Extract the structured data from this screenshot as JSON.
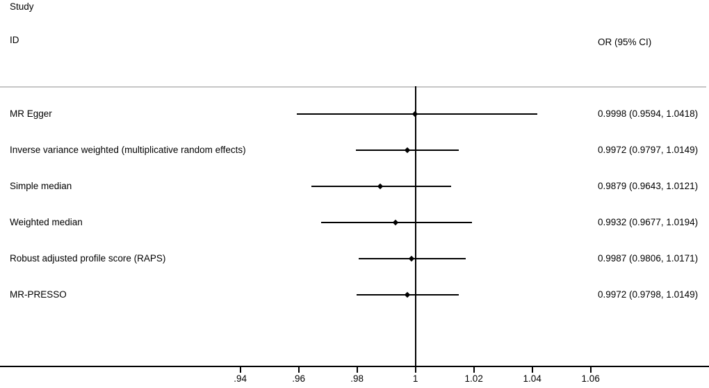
{
  "header": {
    "study_label": "Study",
    "id_label": "ID",
    "or_column_label": "OR (95% CI)"
  },
  "colors": {
    "text": "#000000",
    "line": "#000000",
    "separator": "#c6c6c6",
    "background": "#ffffff"
  },
  "chart_data": {
    "type": "forest",
    "title": "",
    "xlabel": "",
    "ylabel": "",
    "legend": "none",
    "grid": false,
    "reference_line_x": 1,
    "axis_ticks": [
      {
        "value": 0.94,
        "label": ".94"
      },
      {
        "value": 0.96,
        "label": ".96"
      },
      {
        "value": 0.98,
        "label": ".98"
      },
      {
        "value": 1.0,
        "label": "1"
      },
      {
        "value": 1.02,
        "label": "1.02"
      },
      {
        "value": 1.04,
        "label": "1.04"
      },
      {
        "value": 1.06,
        "label": "1.06"
      }
    ],
    "rows": [
      {
        "label": "MR Egger",
        "or": 0.9998,
        "ci_low": 0.9594,
        "ci_high": 1.0418,
        "display": "0.9998 (0.9594, 1.0418)"
      },
      {
        "label": "Inverse variance weighted (multiplicative random effects)",
        "or": 0.9972,
        "ci_low": 0.9797,
        "ci_high": 1.0149,
        "display": "0.9972 (0.9797, 1.0149)"
      },
      {
        "label": "Simple median",
        "or": 0.9879,
        "ci_low": 0.9643,
        "ci_high": 1.0121,
        "display": "0.9879 (0.9643, 1.0121)"
      },
      {
        "label": "Weighted median",
        "or": 0.9932,
        "ci_low": 0.9677,
        "ci_high": 1.0194,
        "display": "0.9932 (0.9677, 1.0194)"
      },
      {
        "label": "Robust adjusted profile score (RAPS)",
        "or": 0.9987,
        "ci_low": 0.9806,
        "ci_high": 1.0171,
        "display": "0.9987 (0.9806, 1.0171)"
      },
      {
        "label": "MR-PRESSO",
        "or": 0.9972,
        "ci_low": 0.9798,
        "ci_high": 1.0149,
        "display": "0.9972 (0.9798, 1.0149)"
      }
    ]
  }
}
